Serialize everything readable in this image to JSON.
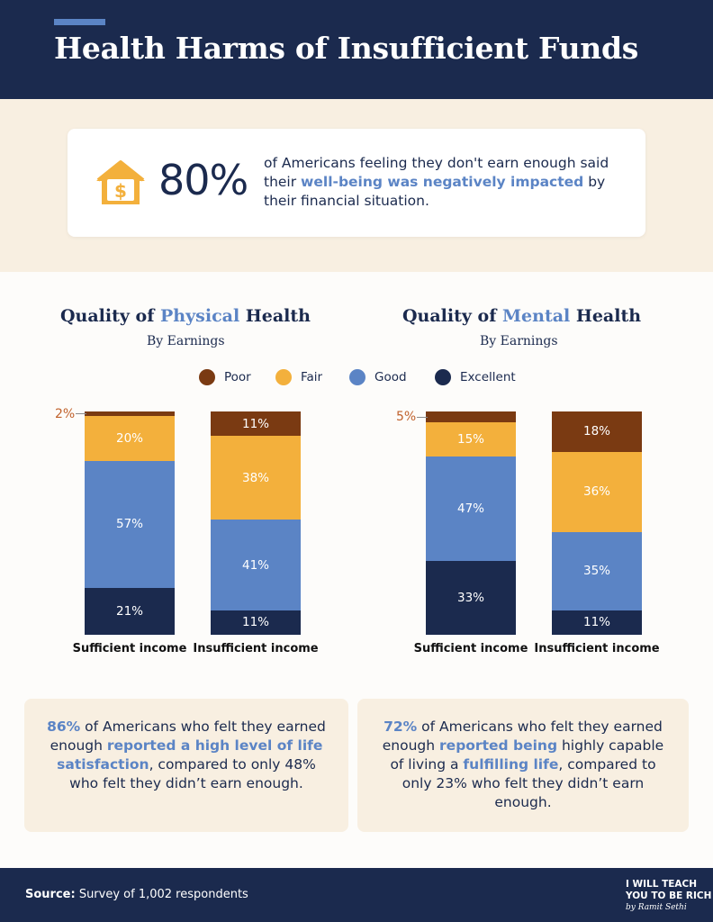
{
  "header": {
    "title": "Health Harms of Insufficient Funds"
  },
  "stat": {
    "value": "80%",
    "text_1": "of Americans feeling they don't earn enough said their ",
    "text_hl": "well-being was negatively impacted",
    "text_2": " by their financial situation.",
    "icon": "house-dollar-icon"
  },
  "legend": [
    {
      "label": "Poor",
      "color": "#7a3a12"
    },
    {
      "label": "Fair",
      "color": "#f3b03c"
    },
    {
      "label": "Good",
      "color": "#5b84c5"
    },
    {
      "label": "Excellent",
      "color": "#1b2a4e"
    }
  ],
  "physical": {
    "title_pre": "Quality of ",
    "title_hl": "Physical",
    "title_post": " Health",
    "subtitle": "By Earnings",
    "callout": "2%"
  },
  "mental": {
    "title_pre": "Quality of ",
    "title_hl": "Mental",
    "title_post": " Health",
    "subtitle": "By Earnings",
    "callout": "5%"
  },
  "chart_data": [
    {
      "type": "bar",
      "stacked": true,
      "title": "Quality of Physical Health",
      "subtitle": "By Earnings",
      "categories": [
        "Sufficient income",
        "Insufficient income"
      ],
      "series": [
        {
          "name": "Poor",
          "values": [
            2,
            11
          ],
          "labels": [
            "2%",
            "11%"
          ]
        },
        {
          "name": "Fair",
          "values": [
            20,
            38
          ],
          "labels": [
            "20%",
            "38%"
          ]
        },
        {
          "name": "Good",
          "values": [
            57,
            41
          ],
          "labels": [
            "57%",
            "41%"
          ]
        },
        {
          "name": "Excellent",
          "values": [
            21,
            11
          ],
          "labels": [
            "21%",
            "11%"
          ]
        }
      ],
      "ylim": [
        0,
        100
      ]
    },
    {
      "type": "bar",
      "stacked": true,
      "title": "Quality of Mental Health",
      "subtitle": "By Earnings",
      "categories": [
        "Sufficient income",
        "Insufficient income"
      ],
      "series": [
        {
          "name": "Poor",
          "values": [
            5,
            18
          ],
          "labels": [
            "5%",
            "18%"
          ]
        },
        {
          "name": "Fair",
          "values": [
            15,
            36
          ],
          "labels": [
            "15%",
            "36%"
          ]
        },
        {
          "name": "Good",
          "values": [
            47,
            35
          ],
          "labels": [
            "47%",
            "35%"
          ]
        },
        {
          "name": "Excellent",
          "values": [
            33,
            11
          ],
          "labels": [
            "33%",
            "11%"
          ]
        }
      ],
      "ylim": [
        0,
        100
      ]
    }
  ],
  "notes": {
    "left": {
      "pct": "86%",
      "t1": " of Americans who felt they earned enough ",
      "hl": "reported a high level of life satisfaction",
      "t2": ", compared to only 48% who felt they didn’t earn enough."
    },
    "right": {
      "pct": "72%",
      "t1": " of Americans who felt they earned enough ",
      "hl1": "reported being",
      "t2": " highly capable of living a ",
      "hl2": "fulfilling life",
      "t3": ", compared to only 23% who felt they didn’t earn enough."
    }
  },
  "footer": {
    "source_label": "Source:",
    "source_text": " Survey of 1,002 respondents",
    "brand_1": "I WILL TEACH",
    "brand_2": "YOU TO BE RICH",
    "brand_sig": "by Ramit Sethi"
  }
}
